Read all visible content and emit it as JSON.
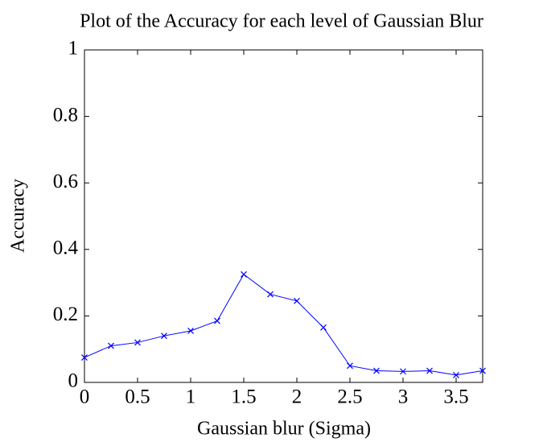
{
  "chart_data": {
    "type": "line",
    "title": "Plot of the Accuracy for each level of Gaussian Blur",
    "x_label": "Gaussian blur (Sigma)",
    "y_label": "Accuracy",
    "x": [
      0,
      0.25,
      0.5,
      0.75,
      1,
      1.25,
      1.5,
      1.75,
      2,
      2.25,
      2.5,
      2.75,
      3,
      3.25,
      3.5,
      3.75
    ],
    "series": [
      {
        "name": "Accuracy",
        "color": "#0000ff",
        "values": [
          0.075,
          0.11,
          0.12,
          0.14,
          0.155,
          0.185,
          0.325,
          0.265,
          0.245,
          0.165,
          0.05,
          0.035,
          0.033,
          0.035,
          0.022,
          0.035
        ]
      }
    ],
    "xlim": [
      0,
      3.75
    ],
    "xticks": [
      0,
      0.5,
      1,
      1.5,
      2,
      2.5,
      3,
      3.5
    ],
    "ylim": [
      0,
      1
    ],
    "yticks": [
      0,
      0.2,
      0.4,
      0.6,
      0.8,
      1
    ],
    "marker": "x"
  }
}
